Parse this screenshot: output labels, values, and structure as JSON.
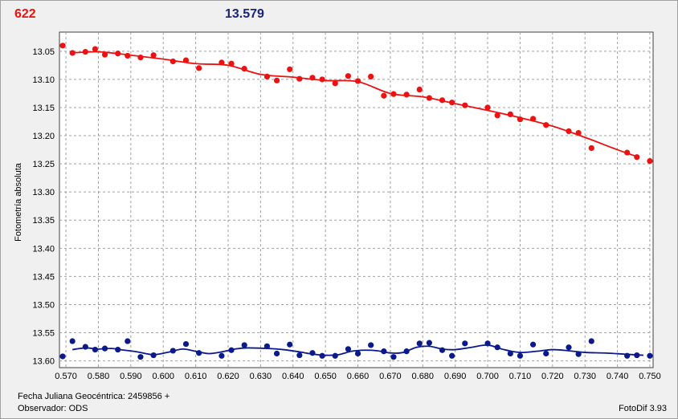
{
  "header": {
    "object_label": "622",
    "magnitude_label": "13.579"
  },
  "footer": {
    "jd_label": "Fecha Juliana Geocéntrica: 2459856 +",
    "observer_label": "Observador: ODS",
    "software_label": "FotoDif 3.93"
  },
  "colors": {
    "series_red": "#ee1111",
    "series_blue": "#0a1a8c",
    "grid": "#a0a0a0",
    "plot_bg": "#ffffff"
  },
  "chart_data": {
    "type": "scatter",
    "ylabel": "Fotometría absoluta",
    "xlabel": "",
    "xlim": [
      0.568,
      0.751
    ],
    "ylim": [
      13.612,
      13.016
    ],
    "y_inverted": true,
    "grid": true,
    "x_ticks": [
      "0.570",
      "0.580",
      "0.590",
      "0.600",
      "0.610",
      "0.620",
      "0.630",
      "0.640",
      "0.650",
      "0.660",
      "0.670",
      "0.680",
      "0.690",
      "0.700",
      "0.710",
      "0.720",
      "0.730",
      "0.740",
      "0.750"
    ],
    "x_tick_values": [
      0.57,
      0.58,
      0.59,
      0.6,
      0.61,
      0.62,
      0.63,
      0.64,
      0.65,
      0.66,
      0.67,
      0.68,
      0.69,
      0.7,
      0.71,
      0.72,
      0.73,
      0.74,
      0.75
    ],
    "y_ticks": [
      "13.05",
      "13.10",
      "13.15",
      "13.20",
      "13.25",
      "13.30",
      "13.35",
      "13.40",
      "13.45",
      "13.50",
      "13.55",
      "13.60"
    ],
    "y_tick_values": [
      13.05,
      13.1,
      13.15,
      13.2,
      13.25,
      13.3,
      13.35,
      13.4,
      13.45,
      13.5,
      13.55,
      13.6
    ],
    "series": [
      {
        "color": "#ee1111",
        "points": [
          [
            0.569,
            13.04
          ],
          [
            0.572,
            13.053
          ],
          [
            0.576,
            13.051
          ],
          [
            0.579,
            13.046
          ],
          [
            0.582,
            13.056
          ],
          [
            0.586,
            13.054
          ],
          [
            0.589,
            13.058
          ],
          [
            0.593,
            13.061
          ],
          [
            0.597,
            13.057
          ],
          [
            0.603,
            13.068
          ],
          [
            0.607,
            13.066
          ],
          [
            0.611,
            13.08
          ],
          [
            0.618,
            13.07
          ],
          [
            0.621,
            13.072
          ],
          [
            0.625,
            13.081
          ],
          [
            0.632,
            13.095
          ],
          [
            0.635,
            13.102
          ],
          [
            0.639,
            13.082
          ],
          [
            0.642,
            13.099
          ],
          [
            0.646,
            13.097
          ],
          [
            0.649,
            13.1
          ],
          [
            0.653,
            13.107
          ],
          [
            0.657,
            13.094
          ],
          [
            0.66,
            13.103
          ],
          [
            0.664,
            13.095
          ],
          [
            0.668,
            13.129
          ],
          [
            0.671,
            13.126
          ],
          [
            0.675,
            13.127
          ],
          [
            0.679,
            13.118
          ],
          [
            0.682,
            13.133
          ],
          [
            0.686,
            13.137
          ],
          [
            0.689,
            13.141
          ],
          [
            0.693,
            13.146
          ],
          [
            0.7,
            13.15
          ],
          [
            0.703,
            13.164
          ],
          [
            0.707,
            13.162
          ],
          [
            0.71,
            13.171
          ],
          [
            0.714,
            13.17
          ],
          [
            0.718,
            13.181
          ],
          [
            0.725,
            13.192
          ],
          [
            0.728,
            13.195
          ],
          [
            0.732,
            13.222
          ],
          [
            0.743,
            13.23
          ],
          [
            0.746,
            13.238
          ],
          [
            0.75,
            13.245
          ]
        ],
        "trend": [
          [
            0.572,
            13.053
          ],
          [
            0.58,
            13.051
          ],
          [
            0.59,
            13.057
          ],
          [
            0.6,
            13.064
          ],
          [
            0.61,
            13.072
          ],
          [
            0.62,
            13.075
          ],
          [
            0.63,
            13.091
          ],
          [
            0.64,
            13.096
          ],
          [
            0.65,
            13.102
          ],
          [
            0.66,
            13.104
          ],
          [
            0.67,
            13.125
          ],
          [
            0.68,
            13.131
          ],
          [
            0.69,
            13.143
          ],
          [
            0.7,
            13.155
          ],
          [
            0.71,
            13.168
          ],
          [
            0.72,
            13.183
          ],
          [
            0.73,
            13.203
          ],
          [
            0.74,
            13.225
          ],
          [
            0.746,
            13.237
          ]
        ]
      },
      {
        "color": "#0a1a8c",
        "points": [
          [
            0.569,
            13.592
          ],
          [
            0.572,
            13.565
          ],
          [
            0.576,
            13.575
          ],
          [
            0.579,
            13.58
          ],
          [
            0.582,
            13.578
          ],
          [
            0.586,
            13.58
          ],
          [
            0.589,
            13.565
          ],
          [
            0.593,
            13.593
          ],
          [
            0.597,
            13.59
          ],
          [
            0.603,
            13.582
          ],
          [
            0.607,
            13.57
          ],
          [
            0.611,
            13.586
          ],
          [
            0.618,
            13.591
          ],
          [
            0.621,
            13.581
          ],
          [
            0.625,
            13.572
          ],
          [
            0.632,
            13.574
          ],
          [
            0.635,
            13.587
          ],
          [
            0.639,
            13.571
          ],
          [
            0.642,
            13.59
          ],
          [
            0.646,
            13.586
          ],
          [
            0.649,
            13.591
          ],
          [
            0.653,
            13.591
          ],
          [
            0.657,
            13.579
          ],
          [
            0.66,
            13.587
          ],
          [
            0.664,
            13.572
          ],
          [
            0.668,
            13.583
          ],
          [
            0.671,
            13.593
          ],
          [
            0.675,
            13.583
          ],
          [
            0.679,
            13.569
          ],
          [
            0.682,
            13.568
          ],
          [
            0.686,
            13.581
          ],
          [
            0.689,
            13.591
          ],
          [
            0.693,
            13.569
          ],
          [
            0.7,
            13.569
          ],
          [
            0.703,
            13.576
          ],
          [
            0.707,
            13.587
          ],
          [
            0.71,
            13.591
          ],
          [
            0.714,
            13.571
          ],
          [
            0.718,
            13.587
          ],
          [
            0.725,
            13.576
          ],
          [
            0.728,
            13.588
          ],
          [
            0.732,
            13.565
          ],
          [
            0.743,
            13.591
          ],
          [
            0.746,
            13.59
          ],
          [
            0.75,
            13.591
          ]
        ],
        "trend": [
          [
            0.572,
            13.58
          ],
          [
            0.576,
            13.577
          ],
          [
            0.58,
            13.579
          ],
          [
            0.584,
            13.578
          ],
          [
            0.588,
            13.581
          ],
          [
            0.592,
            13.584
          ],
          [
            0.597,
            13.589
          ],
          [
            0.602,
            13.584
          ],
          [
            0.606,
            13.579
          ],
          [
            0.61,
            13.583
          ],
          [
            0.614,
            13.587
          ],
          [
            0.618,
            13.584
          ],
          [
            0.622,
            13.579
          ],
          [
            0.626,
            13.577
          ],
          [
            0.632,
            13.578
          ],
          [
            0.637,
            13.58
          ],
          [
            0.642,
            13.584
          ],
          [
            0.646,
            13.588
          ],
          [
            0.65,
            13.59
          ],
          [
            0.654,
            13.589
          ],
          [
            0.658,
            13.583
          ],
          [
            0.662,
            13.581
          ],
          [
            0.666,
            13.582
          ],
          [
            0.67,
            13.586
          ],
          [
            0.674,
            13.585
          ],
          [
            0.678,
            13.576
          ],
          [
            0.682,
            13.574
          ],
          [
            0.686,
            13.579
          ],
          [
            0.69,
            13.58
          ],
          [
            0.695,
            13.576
          ],
          [
            0.7,
            13.572
          ],
          [
            0.705,
            13.58
          ],
          [
            0.71,
            13.585
          ],
          [
            0.715,
            13.583
          ],
          [
            0.72,
            13.58
          ],
          [
            0.725,
            13.582
          ],
          [
            0.73,
            13.585
          ],
          [
            0.736,
            13.586
          ],
          [
            0.742,
            13.588
          ],
          [
            0.748,
            13.59
          ]
        ]
      }
    ]
  }
}
